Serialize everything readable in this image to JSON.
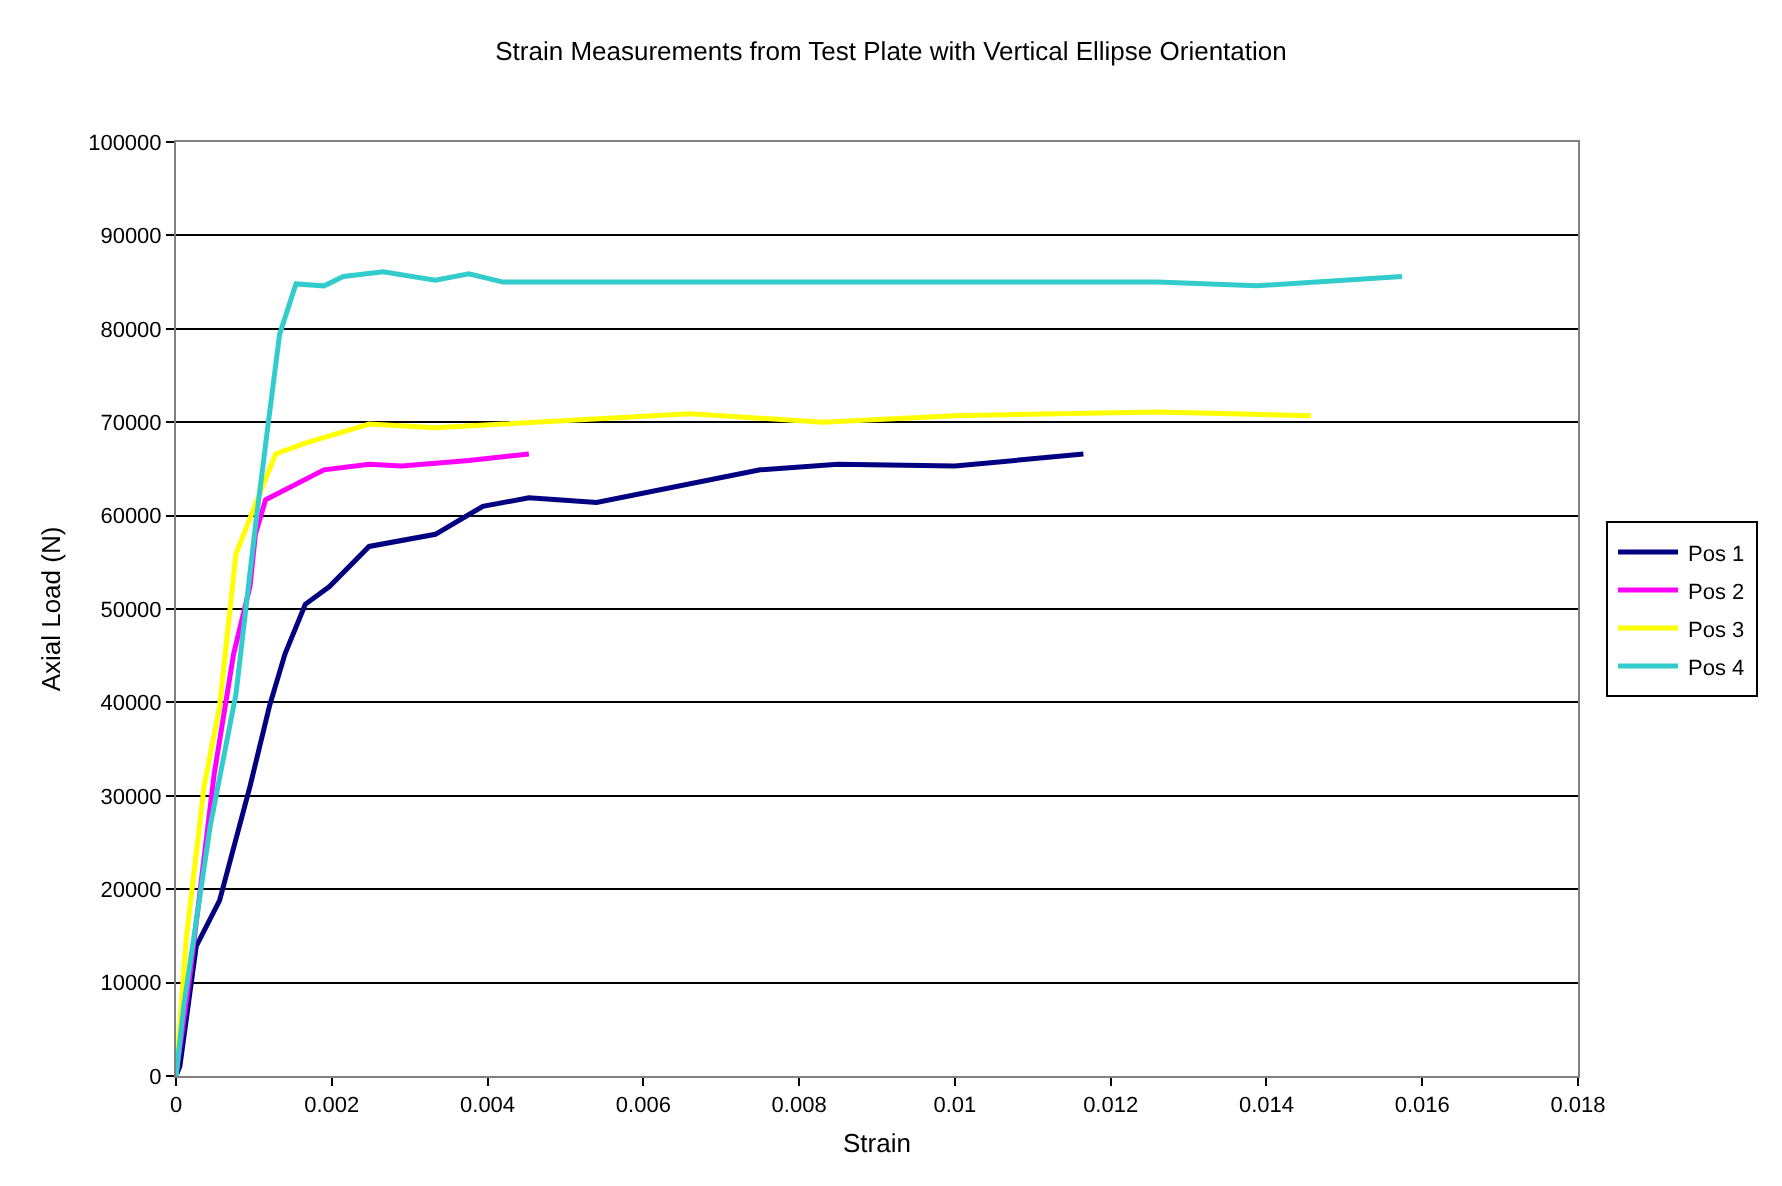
{
  "chart_data": {
    "type": "line",
    "title": "Strain Measurements from Test Plate with Vertical Ellipse Orientation",
    "xlabel": "Strain",
    "ylabel": "Axial Load (N)",
    "xlim": [
      0,
      0.018
    ],
    "xticks": [
      0,
      0.002,
      0.004,
      0.006,
      0.008,
      0.01,
      0.012,
      0.014,
      0.016,
      0.018
    ],
    "ylim": [
      0,
      100000
    ],
    "yticks": [
      0,
      10000,
      20000,
      30000,
      40000,
      50000,
      60000,
      70000,
      80000,
      90000,
      100000
    ],
    "grid": "y",
    "legend": "right",
    "marker": "none",
    "line_style": "solid",
    "series": [
      {
        "name": "Pos 1",
        "color": "#000080",
        "x": [
          0,
          5e-05,
          0.00026,
          0.00056,
          0.00095,
          0.0012,
          0.0014,
          0.00166,
          0.00197,
          0.00248,
          0.00333,
          0.00394,
          0.00453,
          0.0049,
          0.0054,
          0.0075,
          0.0085,
          0.01,
          0.01165
        ],
        "values": [
          0,
          1070,
          13900,
          18800,
          31000,
          39600,
          45200,
          50500,
          52400,
          56700,
          58000,
          61000,
          61900,
          61700,
          61400,
          64900,
          65500,
          65300,
          66600
        ]
      },
      {
        "name": "Pos 2",
        "color": "#ff00ff",
        "x": [
          0,
          0.00018,
          0.00049,
          0.00074,
          0.00095,
          0.00102,
          0.00115,
          0.0019,
          0.00248,
          0.0029,
          0.00376,
          0.00453
        ],
        "values": [
          0,
          10900,
          32300,
          45200,
          52400,
          58000,
          61700,
          64900,
          65500,
          65300,
          65900,
          66600
        ]
      },
      {
        "name": "Pos 3",
        "color": "#ffff00",
        "x": [
          0,
          0.00013,
          0.00036,
          0.00056,
          0.00077,
          0.00102,
          0.00128,
          0.00164,
          0.00248,
          0.00333,
          0.0042,
          0.0066,
          0.0083,
          0.01,
          0.0126,
          0.01457
        ],
        "values": [
          0,
          14600,
          31000,
          39600,
          55900,
          61200,
          66600,
          67700,
          69800,
          69400,
          69800,
          70900,
          70000,
          70700,
          71100,
          70700
        ]
      },
      {
        "name": "Pos 4",
        "color": "#33cccc",
        "x": [
          0,
          0.0001,
          0.00044,
          0.00077,
          0.00102,
          0.0012,
          0.00133,
          0.00154,
          0.0019,
          0.00215,
          0.00266,
          0.00333,
          0.00376,
          0.0042,
          0.005,
          0.0083,
          0.0126,
          0.01387,
          0.01574
        ],
        "values": [
          0,
          7500,
          26800,
          40900,
          58900,
          70900,
          79400,
          84800,
          84600,
          85600,
          86100,
          85200,
          85900,
          85000,
          85000,
          85000,
          85000,
          84600,
          85600
        ]
      }
    ]
  }
}
